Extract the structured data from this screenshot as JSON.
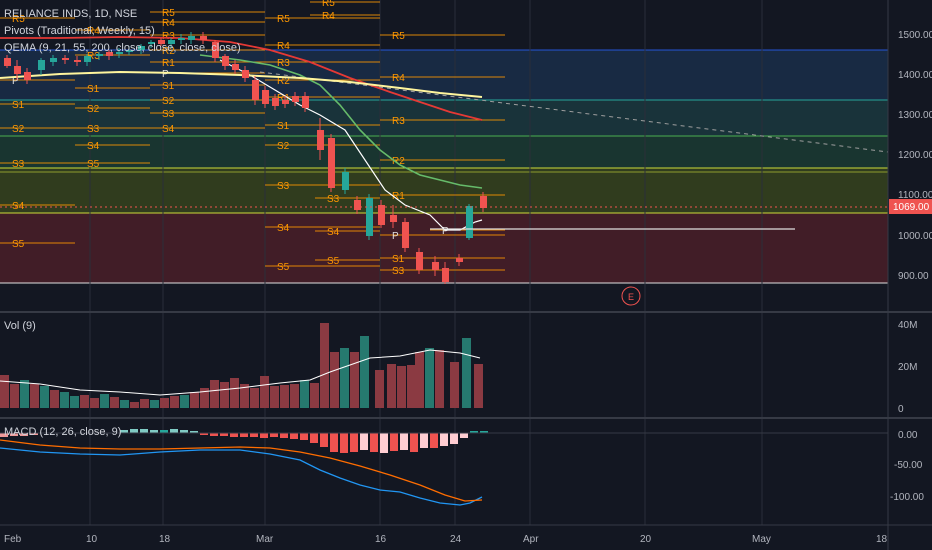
{
  "symbol": {
    "title": "RELIANCE INDS, 1D, NSE"
  },
  "indicators": {
    "pivots": "Pivots (Traditional, Weekly, 15)",
    "qema": "QEMA (9, 21, 55, 200, close, close, close, close)",
    "vol": "Vol (9)",
    "macd": "MACD (12, 26, close, 9)"
  },
  "price_axis": {
    "ticks": [
      "1500.00",
      "1400.00",
      "1300.00",
      "1200.00",
      "1100.00",
      "1000.00",
      "900.00"
    ],
    "current_price": "1069.00"
  },
  "vol_axis": {
    "ticks": [
      "40M",
      "20M",
      "0"
    ]
  },
  "macd_axis": {
    "ticks": [
      "0.00",
      "-50.00",
      "-100.00"
    ]
  },
  "time_axis": {
    "ticks": [
      "Feb",
      "10",
      "18",
      "Mar",
      "16",
      "24",
      "Apr",
      "20",
      "May",
      "18"
    ]
  },
  "pivot_labels": {
    "list": [
      "R5",
      "R4",
      "R3",
      "R2",
      "R1",
      "P",
      "S1",
      "S2",
      "S3",
      "S4",
      "S5"
    ]
  },
  "earnings_marker": "E",
  "colors": {
    "up": "#26a69a",
    "down": "#ef5350",
    "macd_line": "#2196f3",
    "signal_line": "#ff6d00",
    "pivot": "#ff9800",
    "background": "#131722"
  }
}
